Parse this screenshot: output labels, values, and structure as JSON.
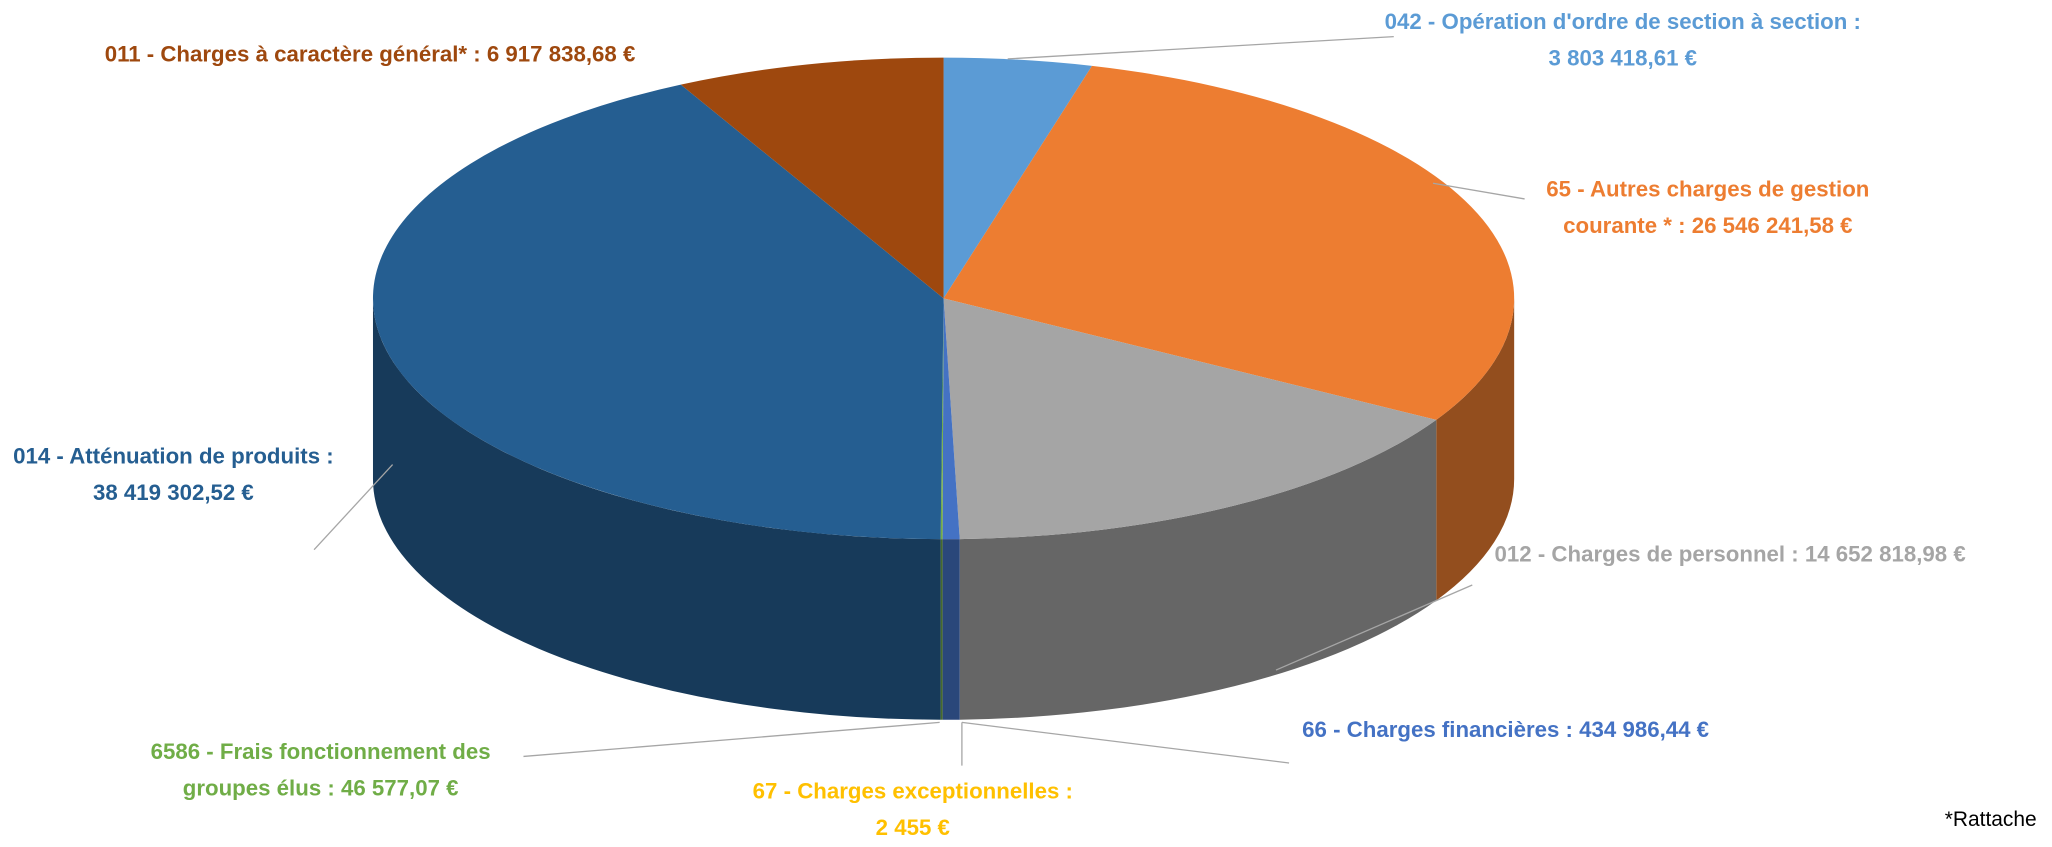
{
  "chart_data": {
    "type": "pie",
    "categories": [
      "042 - Opération d'ordre de section à section :",
      "65 - Autres charges de gestion courante * :",
      "012 - Charges de personnel :",
      "66 - Charges financières :",
      "67 - Charges exceptionnelles :",
      "6586 - Frais fonctionnement des groupes élus :",
      "014 - Atténuation de produits :",
      "011 - Charges à caractère général* :"
    ],
    "values": [
      3803418.61,
      26546241.58,
      14652818.98,
      434986.44,
      2455,
      46577.07,
      38419302.52,
      6917838.68
    ],
    "value_labels": [
      "3 803 418,61 €",
      "26 546 241,58 €",
      "14 652 818,98 €",
      "434 986,44 €",
      "2 455 €",
      "46 577,07 €",
      "38 419 302,52 €",
      "6 917 838,68 €"
    ],
    "colors": [
      "#5b9bd5",
      "#ed7d31",
      "#a5a5a5",
      "#4472c4",
      "#ffc000",
      "#70ad47",
      "#255e91",
      "#9e480e"
    ],
    "footnote": "*Rattache"
  }
}
